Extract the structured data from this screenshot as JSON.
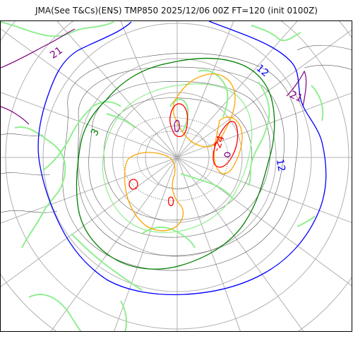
{
  "title": "JMA(See T&Cs)(ENS) TMP850 2025/12/06 00Z FT=120 (init 0100Z)",
  "map": {
    "projection": "north-polar-stereographic",
    "colors": {
      "graticule": "#b0b0b0",
      "land": "#90ee90",
      "isotherm_21": "#800080",
      "isotherm_12": "#0000ff",
      "isotherm_3": "#008000",
      "isotherm_minus6": "#90ee90",
      "isotherm_minus15": "#ffa500",
      "isotherm_minus24": "#ff0000",
      "isotherm_minus33": "#800080",
      "minor_contour": "#555555"
    },
    "contour_labels": [
      {
        "id": "label-21-west",
        "text": "21",
        "color": "#800080"
      },
      {
        "id": "label-21-east",
        "text": "21",
        "color": "#800080"
      },
      {
        "id": "label-12-north",
        "text": "12",
        "color": "#0000ff"
      },
      {
        "id": "label-12-east",
        "text": "12",
        "color": "#0000ff"
      },
      {
        "id": "label-3-west",
        "text": "3",
        "color": "#008000"
      },
      {
        "id": "label-minus24-east",
        "text": "-24",
        "color": "#ff0000"
      }
    ]
  }
}
